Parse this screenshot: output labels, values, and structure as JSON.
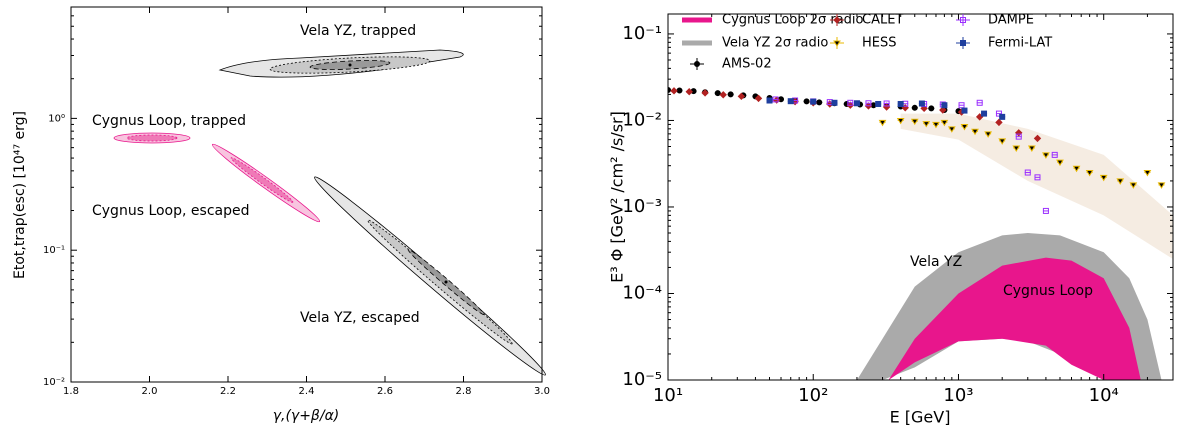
{
  "chart_data": [
    {
      "type": "contour",
      "xlabel": "γ,(γ+β/α)",
      "ylabel": "Etot,trap(esc) [10⁴⁷ erg]",
      "xlim": [
        1.8,
        3.0
      ],
      "xticks": [
        1.8,
        {
          "value": 2.0,
          "label": "2.0"
        },
        2.2,
        2.4,
        2.6,
        2.8,
        {
          "value": 3.0,
          "label": "3.0"
        }
      ],
      "log_y": true,
      "ylim": [
        0.01,
        7
      ],
      "yticks": [
        {
          "value": 0.01,
          "label": "10⁻²"
        },
        {
          "value": 0.1,
          "label": "10⁻¹"
        },
        {
          "value": 1,
          "label": "10⁰"
        }
      ],
      "annotations": [
        {
          "text": "Vela YZ, trapped",
          "color": "#000000"
        },
        {
          "text": "Cygnus Loop, trapped",
          "color": "#e8168c"
        },
        {
          "text": "Cygnus Loop, escaped",
          "color": "#e8168c"
        },
        {
          "text": "Vela YZ, escaped",
          "color": "#000000"
        }
      ]
    },
    {
      "type": "scatter",
      "xlabel": "E [GeV]",
      "ylabel": "E³ Φ [GeV² /cm² /s/sr]",
      "log_x": true,
      "log_y": true,
      "xlim": [
        10,
        30000
      ],
      "xticks": [
        {
          "value": 10,
          "label": "10¹"
        },
        {
          "value": 100,
          "label": "10²"
        },
        {
          "value": 1000,
          "label": "10³"
        },
        {
          "value": 10000,
          "label": "10⁴"
        }
      ],
      "ylim": [
        1e-05,
        0.17
      ],
      "yticks": [
        {
          "value": 1e-05,
          "label": "10⁻⁵"
        },
        {
          "value": 0.0001,
          "label": "10⁻⁴"
        },
        {
          "value": 0.001,
          "label": "10⁻³"
        },
        {
          "value": 0.01,
          "label": "10⁻²"
        },
        {
          "value": 0.1,
          "label": "10⁻¹"
        }
      ],
      "shade": {
        "color": "#f5ece2",
        "x": [
          400,
          1000,
          3000,
          10000,
          30000
        ],
        "lower": [
          0.008,
          0.006,
          0.002,
          0.0008,
          0.00025
        ],
        "upper": [
          0.012,
          0.012,
          0.008,
          0.004,
          0.0008
        ]
      },
      "bands": [
        {
          "name": "Cygnus Loop 2σ radio",
          "color": "#e8168c",
          "x": [
            330,
            500,
            1000,
            2000,
            4000,
            6000,
            10000,
            15000,
            18000
          ],
          "lower": [
            1e-05,
            1.6e-05,
            2.8e-05,
            3e-05,
            2.5e-05,
            1.5e-05,
            1e-05,
            1e-05,
            1e-05
          ],
          "upper": [
            1e-05,
            3e-05,
            0.0001,
            0.00021,
            0.00026,
            0.00024,
            0.00015,
            4e-05,
            1e-05
          ]
        },
        {
          "name": "Vela YZ 2σ radio",
          "color": "#aaaaaa",
          "x": [
            200,
            300,
            500,
            1000,
            2000,
            3000,
            5000,
            10000,
            15000,
            20000,
            25000
          ],
          "lower": [
            1e-05,
            1e-05,
            1.4e-05,
            2.8e-05,
            3e-05,
            2.8e-05,
            2e-05,
            1e-05,
            1e-05,
            1e-05,
            1e-05
          ],
          "upper": [
            1e-05,
            3e-05,
            0.00012,
            0.0003,
            0.00047,
            0.0005,
            0.00047,
            0.0003,
            0.00015,
            5e-05,
            1e-05
          ]
        }
      ],
      "series": [
        {
          "name": "AMS-02",
          "color": "#000000",
          "marker": "circle",
          "x": [
            10,
            12,
            15,
            18,
            22,
            27,
            33,
            40,
            50,
            60,
            75,
            90,
            110,
            140,
            170,
            210,
            260,
            320,
            400,
            500,
            650,
            800,
            1000
          ],
          "values": [
            0.0225,
            0.0222,
            0.0218,
            0.0212,
            0.0207,
            0.02,
            0.0195,
            0.019,
            0.0182,
            0.0176,
            0.017,
            0.0166,
            0.0162,
            0.0158,
            0.0155,
            0.0153,
            0.015,
            0.0148,
            0.0145,
            0.014,
            0.0138,
            0.0132,
            0.0128
          ]
        },
        {
          "name": "CALET",
          "color": "#b22222",
          "marker": "diamond",
          "x": [
            11,
            14,
            18,
            24,
            32,
            42,
            56,
            75,
            100,
            130,
            180,
            240,
            320,
            430,
            580,
            780,
            1050,
            1400,
            1900,
            2600,
            3500
          ],
          "values": [
            0.022,
            0.0215,
            0.0208,
            0.0198,
            0.019,
            0.018,
            0.0172,
            0.0165,
            0.016,
            0.0155,
            0.015,
            0.0147,
            0.0143,
            0.014,
            0.0138,
            0.0132,
            0.0125,
            0.011,
            0.0095,
            0.0072,
            0.0062
          ]
        },
        {
          "name": "HESS",
          "color": "#e8b800",
          "marker": "triangle",
          "x": [
            300,
            400,
            500,
            600,
            700,
            800,
            900,
            1100,
            1300,
            1600,
            2000,
            2500,
            3200,
            4000,
            5000,
            6500,
            8000,
            10000,
            13000,
            16000,
            20000,
            25000
          ],
          "values": [
            0.0095,
            0.01,
            0.0098,
            0.0092,
            0.009,
            0.0095,
            0.008,
            0.0085,
            0.0075,
            0.007,
            0.0058,
            0.0048,
            0.0048,
            0.004,
            0.0033,
            0.0028,
            0.0025,
            0.0022,
            0.002,
            0.0018,
            0.0025,
            0.0018
          ]
        },
        {
          "name": "DAMPE",
          "color": "#9b30ff",
          "marker": "square-open",
          "x": [
            55,
            75,
            100,
            130,
            180,
            240,
            320,
            430,
            580,
            780,
            1050,
            1400,
            1900,
            2600,
            3000,
            3500,
            4000,
            4600
          ],
          "values": [
            0.0175,
            0.017,
            0.0166,
            0.0163,
            0.016,
            0.0158,
            0.0157,
            0.0156,
            0.0155,
            0.0153,
            0.015,
            0.016,
            0.012,
            0.0065,
            0.0025,
            0.0022,
            0.0009,
            0.004
          ]
        },
        {
          "name": "Fermi-LAT",
          "color": "#1f3f9f",
          "marker": "square",
          "x": [
            50,
            70,
            100,
            140,
            200,
            280,
            400,
            560,
            800,
            1100,
            1500,
            2000
          ],
          "values": [
            0.017,
            0.0167,
            0.0165,
            0.016,
            0.0158,
            0.0155,
            0.0155,
            0.0157,
            0.015,
            0.013,
            0.012,
            0.011
          ]
        }
      ],
      "annotations": [
        {
          "text": "Vela YZ",
          "color": "#000000"
        },
        {
          "text": "Cygnus Loop",
          "color": "#000000"
        }
      ]
    }
  ]
}
